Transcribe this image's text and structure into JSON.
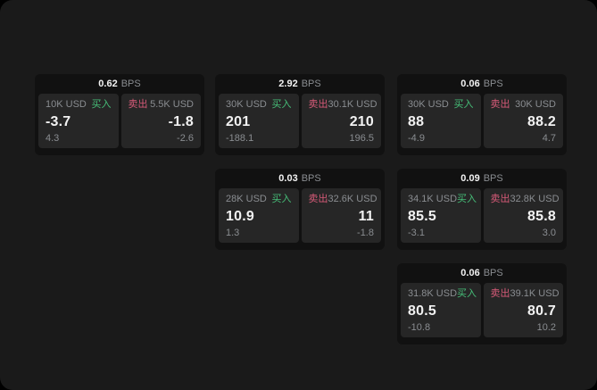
{
  "labels": {
    "bps_unit": "BPS",
    "buy": "买入",
    "sell": "卖出"
  },
  "colors": {
    "background": "#1a1a1a",
    "card": "#111111",
    "panel": "#262626",
    "buy_green": "#46be78",
    "sell_red": "#d75a78",
    "text_primary": "#f2f2f2",
    "text_secondary": "#8a8d91"
  },
  "cards": [
    {
      "bps": "0.62",
      "buy": {
        "amount": "10K USD",
        "value": "-3.7",
        "sub": "4.3"
      },
      "sell": {
        "amount": "5.5K USD",
        "value": "-1.8",
        "sub": "-2.6"
      }
    },
    {
      "bps": "2.92",
      "buy": {
        "amount": "30K USD",
        "value": "201",
        "sub": "-188.1"
      },
      "sell": {
        "amount": "30.1K USD",
        "value": "210",
        "sub": "196.5"
      }
    },
    {
      "bps": "0.06",
      "buy": {
        "amount": "30K USD",
        "value": "88",
        "sub": "-4.9"
      },
      "sell": {
        "amount": "30K USD",
        "value": "88.2",
        "sub": "4.7"
      }
    },
    {
      "bps": "0.03",
      "buy": {
        "amount": "28K USD",
        "value": "10.9",
        "sub": "1.3"
      },
      "sell": {
        "amount": "32.6K USD",
        "value": "11",
        "sub": "-1.8"
      }
    },
    {
      "bps": "0.09",
      "buy": {
        "amount": "34.1K USD",
        "value": "85.5",
        "sub": "-3.1"
      },
      "sell": {
        "amount": "32.8K USD",
        "value": "85.8",
        "sub": "3.0"
      }
    },
    {
      "bps": "0.06",
      "buy": {
        "amount": "31.8K USD",
        "value": "80.5",
        "sub": "-10.8"
      },
      "sell": {
        "amount": "39.1K USD",
        "value": "80.7",
        "sub": "10.2"
      }
    }
  ]
}
